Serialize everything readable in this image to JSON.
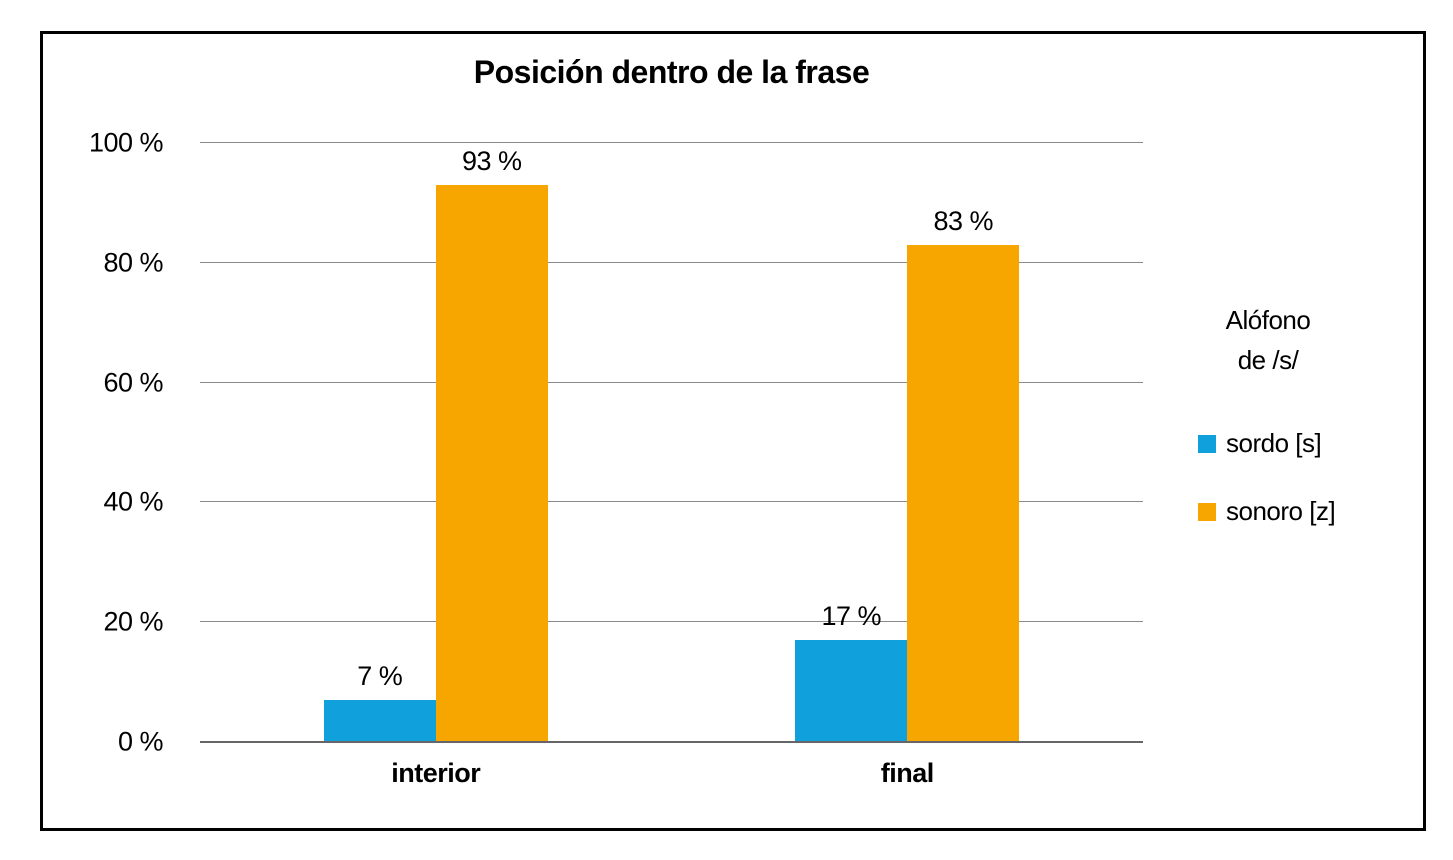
{
  "chart": {
    "title": "Posición dentro de la frase",
    "legend": {
      "title_lines": [
        "Alófono",
        "de /s/"
      ]
    }
  },
  "chart_data": {
    "type": "bar",
    "title": "Posición dentro de la frase",
    "categories": [
      "interior",
      "final"
    ],
    "series": [
      {
        "name": "sordo [s]",
        "color": "#10A0DC",
        "values": [
          7,
          17
        ],
        "labels": [
          "7 %",
          "17 %"
        ]
      },
      {
        "name": "sonoro [z]",
        "color": "#F7A600",
        "values": [
          93,
          83
        ],
        "labels": [
          "93 %",
          "83 %"
        ]
      }
    ],
    "ylim": [
      0,
      100
    ],
    "y_ticks": [
      0,
      20,
      40,
      60,
      80,
      100
    ],
    "y_tick_labels": [
      "0 %",
      "20 %",
      "40 %",
      "60 %",
      "80 %",
      "100 %"
    ],
    "xlabel": "",
    "ylabel": "",
    "grid": true,
    "legend_title": "Alófono de /s/",
    "legend_position": "right"
  }
}
